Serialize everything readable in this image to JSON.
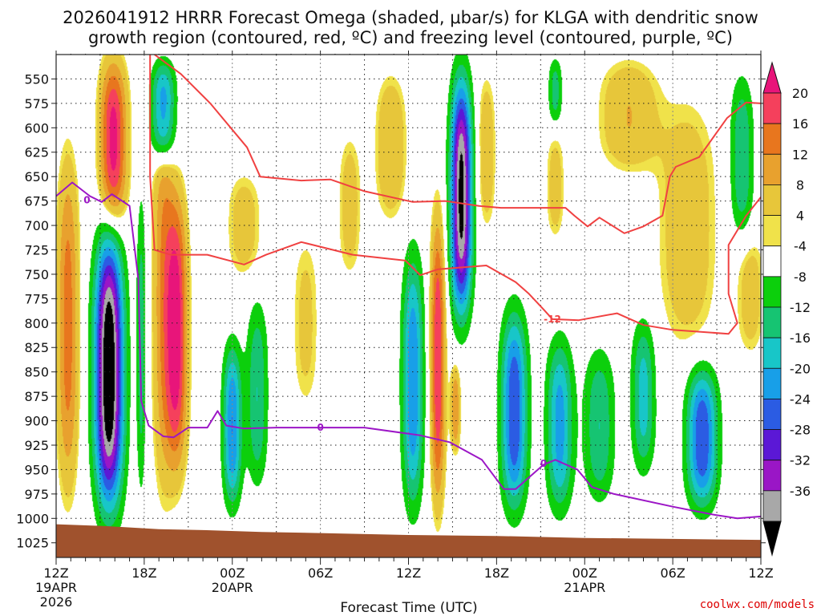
{
  "chart_data": {
    "type": "contour",
    "title_lines": [
      "2026041912 HRRR Forecast Omega (shaded, μbar/s) for KLGA with dendritic snow",
      "growth region (contoured, red, ºC) and freezing level (contoured, purple, ºC)"
    ],
    "xlabel": "Forecast Time (UTC)",
    "ylabel": "",
    "credit": "coolwx.com/models",
    "y_axis": {
      "range": [
        525,
        1040
      ],
      "ticks": [
        550,
        575,
        600,
        625,
        650,
        675,
        700,
        725,
        750,
        775,
        800,
        825,
        850,
        875,
        900,
        925,
        950,
        975,
        1000,
        1025
      ],
      "inverted": true
    },
    "x_axis": {
      "range_hours": [
        0,
        48
      ],
      "ticks": [
        {
          "hour": 0,
          "lines": [
            "12Z",
            "19APR",
            "2026"
          ]
        },
        {
          "hour": 6,
          "lines": [
            "18Z"
          ]
        },
        {
          "hour": 12,
          "lines": [
            "00Z",
            "20APR"
          ]
        },
        {
          "hour": 18,
          "lines": [
            "06Z"
          ]
        },
        {
          "hour": 24,
          "lines": [
            "12Z"
          ]
        },
        {
          "hour": 30,
          "lines": [
            "18Z"
          ]
        },
        {
          "hour": 36,
          "lines": [
            "00Z",
            "21APR"
          ]
        },
        {
          "hour": 42,
          "lines": [
            "06Z"
          ]
        },
        {
          "hour": 48,
          "lines": [
            "12Z"
          ]
        }
      ]
    },
    "colorbar": {
      "levels": [
        20,
        16,
        12,
        8,
        4,
        -4,
        -8,
        -12,
        -16,
        -20,
        -24,
        -28,
        -32,
        -36
      ],
      "colors": [
        "#f5405c",
        "#e8761e",
        "#e8a12e",
        "#e7c63a",
        "#f0e24a",
        "#ffffff",
        "#0ccf0c",
        "#16c472",
        "#18c6c8",
        "#189fe8",
        "#2b5ce3",
        "#5b18d6",
        "#9a16c6",
        "#a8a8a8",
        "#000000"
      ],
      "top_arrow_color": "#e8157a",
      "bottom_arrow_color": "#000000"
    },
    "omega_features": [
      {
        "hour": 0.8,
        "p_top": 620,
        "p_bot": 985,
        "peak": 14,
        "hw": 0.9
      },
      {
        "hour": 3.9,
        "p_top": 525,
        "p_bot": 705,
        "peak": 22,
        "hw": 1.1
      },
      {
        "hour": 3.6,
        "p_top": 700,
        "p_bot": 1000,
        "peak": -42,
        "hw": 1.2
      },
      {
        "hour": 5.8,
        "p_top": 650,
        "p_bot": 990,
        "peak": -10,
        "hw": 0.4
      },
      {
        "hour": 7.3,
        "p_top": 525,
        "p_bot": 640,
        "peak": -22,
        "hw": 1.0
      },
      {
        "hour": 7.3,
        "p_top": 540,
        "p_bot": 985,
        "peak": 11,
        "hw": 0.9
      },
      {
        "hour": 8.2,
        "p_top": 660,
        "p_bot": 960,
        "peak": 22,
        "hw": 0.9
      },
      {
        "hour": 12.0,
        "p_top": 815,
        "p_bot": 995,
        "peak": -20,
        "hw": 0.8
      },
      {
        "hour": 13.7,
        "p_top": 770,
        "p_bot": 975,
        "peak": -12,
        "hw": 0.9
      },
      {
        "hour": 12.8,
        "p_top": 640,
        "p_bot": 760,
        "peak": 6,
        "hw": 1.5
      },
      {
        "hour": 20.0,
        "p_top": 600,
        "p_bot": 760,
        "peak": 6,
        "hw": 1.0
      },
      {
        "hour": 22.8,
        "p_top": 540,
        "p_bot": 700,
        "peak": 8,
        "hw": 1.3
      },
      {
        "hour": 24.3,
        "p_top": 720,
        "p_bot": 1000,
        "peak": -20,
        "hw": 0.9
      },
      {
        "hour": 26.0,
        "p_top": 680,
        "p_bot": 995,
        "peak": 20,
        "hw": 0.6
      },
      {
        "hour": 27.6,
        "p_top": 540,
        "p_bot": 800,
        "peak": -38,
        "hw": 0.9
      },
      {
        "hour": 27.2,
        "p_top": 840,
        "p_bot": 935,
        "peak": 12,
        "hw": 0.4
      },
      {
        "hour": 29.3,
        "p_top": 540,
        "p_bot": 710,
        "peak": 7,
        "hw": 0.8
      },
      {
        "hour": 31.2,
        "p_top": 780,
        "p_bot": 1000,
        "peak": -24,
        "hw": 1.1
      },
      {
        "hour": 34.3,
        "p_top": 810,
        "p_bot": 1000,
        "peak": -18,
        "hw": 1.1
      },
      {
        "hour": 37.0,
        "p_top": 820,
        "p_bot": 990,
        "peak": -12,
        "hw": 1.3
      },
      {
        "hour": 40.0,
        "p_top": 790,
        "p_bot": 960,
        "peak": -14,
        "hw": 1.0
      },
      {
        "hour": 44.0,
        "p_top": 840,
        "p_bot": 995,
        "peak": -24,
        "hw": 1.3
      },
      {
        "hour": 39.0,
        "p_top": 525,
        "p_bot": 650,
        "peak": 8,
        "hw": 2.5
      },
      {
        "hour": 43.0,
        "p_top": 560,
        "p_bot": 840,
        "peak": 7,
        "hw": 2.5
      },
      {
        "hour": 46.7,
        "p_top": 540,
        "p_bot": 720,
        "peak": -12,
        "hw": 1.0
      },
      {
        "hour": 47.3,
        "p_top": 700,
        "p_bot": 840,
        "peak": 6,
        "hw": 1.2
      },
      {
        "hour": 34.0,
        "p_top": 525,
        "p_bot": 600,
        "peak": -10,
        "hw": 0.6
      },
      {
        "hour": 34.0,
        "p_top": 600,
        "p_bot": 720,
        "peak": 6,
        "hw": 0.8
      },
      {
        "hour": 17.0,
        "p_top": 700,
        "p_bot": 900,
        "peak": 5,
        "hw": 1.2
      }
    ],
    "contours": [
      {
        "name": "dgz-upper",
        "color": "#f04141",
        "label": "-12",
        "label_at": [
          33.8,
          796
        ],
        "points": [
          [
            6.7,
            525
          ],
          [
            8.5,
            545
          ],
          [
            10.5,
            575
          ],
          [
            13.0,
            620
          ],
          [
            13.9,
            650
          ],
          [
            16.7,
            654
          ],
          [
            18.7,
            653
          ],
          [
            21.0,
            665
          ],
          [
            24.3,
            676
          ],
          [
            26.5,
            675
          ],
          [
            28.8,
            680
          ],
          [
            30.3,
            682
          ],
          [
            34.7,
            682
          ],
          [
            35.3,
            690
          ],
          [
            36.2,
            701
          ],
          [
            37.0,
            692
          ],
          [
            38.7,
            708
          ],
          [
            40.0,
            701
          ],
          [
            41.3,
            690
          ],
          [
            41.8,
            650
          ],
          [
            42.2,
            640
          ],
          [
            43.8,
            630
          ],
          [
            45.7,
            590
          ],
          [
            47.0,
            574
          ],
          [
            48.0,
            575
          ]
        ]
      },
      {
        "name": "dgz-lower",
        "color": "#f04141",
        "label": "",
        "label_at": null,
        "points": [
          [
            6.4,
            525
          ],
          [
            6.4,
            620
          ],
          [
            6.4,
            650
          ],
          [
            6.7,
            725
          ],
          [
            7.8,
            730
          ],
          [
            10.3,
            730
          ],
          [
            12.8,
            740
          ],
          [
            14.3,
            730
          ],
          [
            16.7,
            717
          ],
          [
            20.2,
            730
          ],
          [
            23.8,
            736
          ],
          [
            24.8,
            751
          ],
          [
            26.0,
            745
          ],
          [
            29.3,
            741
          ],
          [
            31.3,
            758
          ],
          [
            32.2,
            770
          ],
          [
            33.2,
            786
          ],
          [
            33.8,
            796
          ],
          [
            35.6,
            797
          ],
          [
            38.2,
            790
          ],
          [
            40.0,
            802
          ],
          [
            42.0,
            807
          ],
          [
            45.8,
            811
          ],
          [
            46.4,
            800
          ],
          [
            45.8,
            770
          ],
          [
            45.8,
            720
          ],
          [
            47.0,
            690
          ],
          [
            48.0,
            671
          ]
        ]
      },
      {
        "name": "freezing-level",
        "color": "#9c16c6",
        "label": "0",
        "label_at": [
          18.0,
          907
        ],
        "points": [
          [
            0.0,
            670
          ],
          [
            1.1,
            656
          ],
          [
            2.3,
            670
          ],
          [
            3.1,
            676
          ],
          [
            3.8,
            668
          ],
          [
            5.0,
            680
          ],
          [
            5.6,
            755
          ],
          [
            5.8,
            880
          ],
          [
            6.3,
            905
          ],
          [
            7.3,
            916
          ],
          [
            8.0,
            917
          ],
          [
            9.0,
            907
          ],
          [
            10.3,
            907
          ],
          [
            11.0,
            890
          ],
          [
            11.6,
            905
          ],
          [
            12.8,
            908
          ],
          [
            15.0,
            907
          ],
          [
            21.0,
            907
          ],
          [
            24.8,
            915
          ],
          [
            26.8,
            922
          ],
          [
            29.0,
            940
          ],
          [
            30.5,
            970
          ],
          [
            31.3,
            970
          ],
          [
            33.2,
            945
          ],
          [
            34.0,
            940
          ],
          [
            35.5,
            950
          ],
          [
            36.5,
            968
          ],
          [
            38.0,
            975
          ],
          [
            42.0,
            988
          ],
          [
            44.7,
            996
          ],
          [
            46.4,
            1000
          ],
          [
            48.0,
            998
          ]
        ]
      }
    ],
    "ground": {
      "color": "#a0522d",
      "surface_top": [
        [
          0.0,
          1006
        ],
        [
          3.5,
          1008
        ],
        [
          7.0,
          1011
        ],
        [
          10.0,
          1012
        ],
        [
          14.0,
          1014
        ],
        [
          18.0,
          1015
        ],
        [
          24.0,
          1017
        ],
        [
          30.0,
          1018
        ],
        [
          36.0,
          1020
        ],
        [
          42.0,
          1021
        ],
        [
          48.0,
          1022
        ]
      ]
    }
  }
}
